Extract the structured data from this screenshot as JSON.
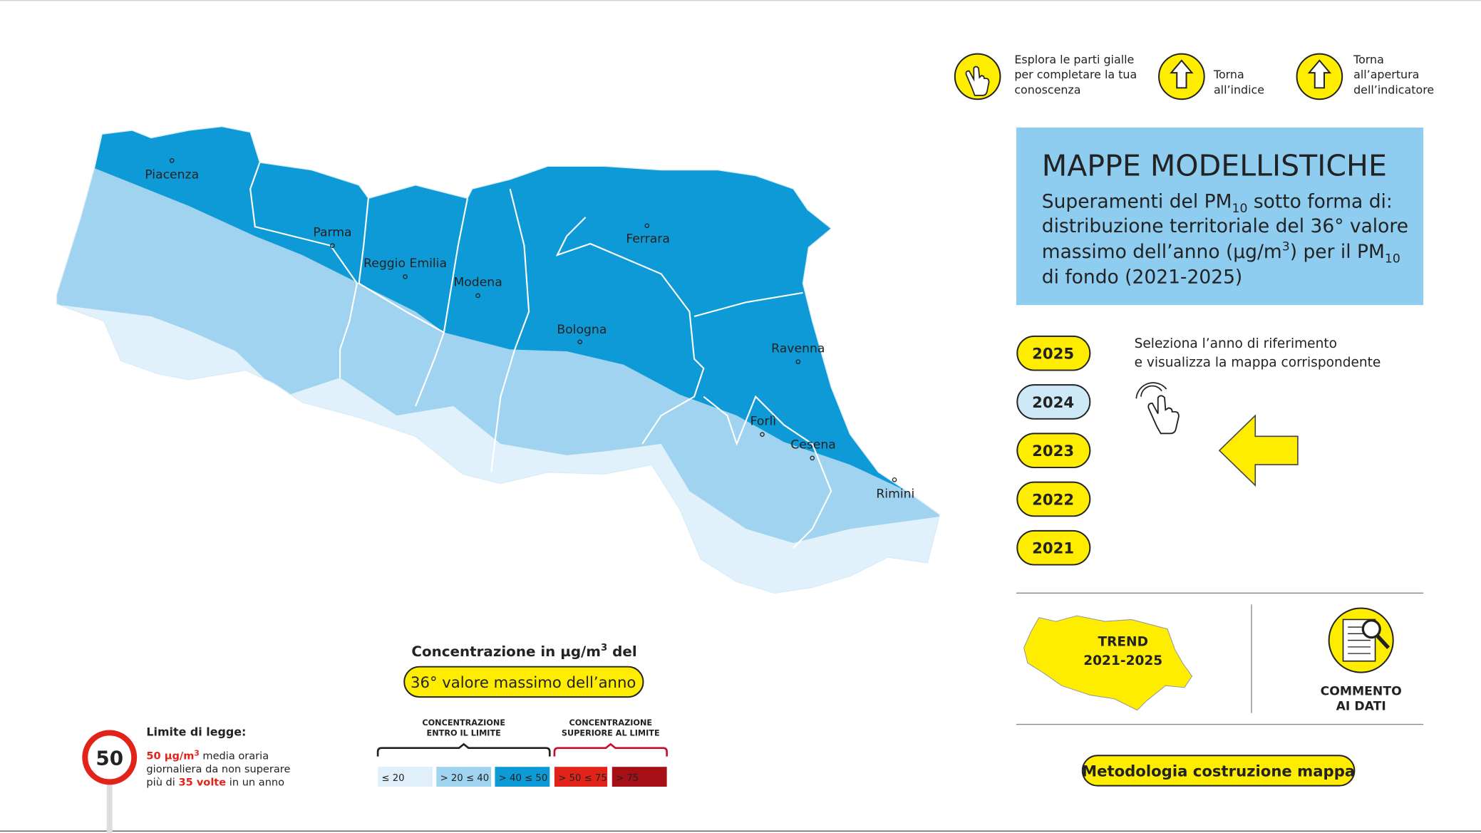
{
  "help": [
    {
      "lines": [
        "Esplora le parti gialle",
        "per completare la tua",
        "conoscenza"
      ]
    },
    {
      "lines": [
        "Torna",
        "all’indice"
      ]
    },
    {
      "lines": [
        "Torna",
        "all’apertura",
        "dell’indicatore"
      ]
    }
  ],
  "panel": {
    "title": "MAPPE MODELLISTICHE",
    "subtitle": [
      [
        "Superamenti del PM",
        "10",
        " sotto forma di:"
      ],
      [
        "distribuzione territoriale del 36° valore"
      ],
      [
        "massimo dell’anno (µg/m",
        "3",
        ") per il PM",
        "10"
      ],
      [
        "di fondo (2021-2025)"
      ]
    ]
  },
  "years": [
    {
      "label": "2025",
      "selected": false
    },
    {
      "label": "2024",
      "selected": true
    },
    {
      "label": "2023",
      "selected": false
    },
    {
      "label": "2022",
      "selected": false
    },
    {
      "label": "2021",
      "selected": false
    }
  ],
  "instruction": [
    "Seleziona l’anno di riferimento",
    "e visualizza la mappa corrispondente"
  ],
  "trend": [
    "TREND",
    "2021-2025"
  ],
  "comment": [
    "COMMENTO",
    "AI DATI"
  ],
  "methodology": "Metodologia costruzione mappa",
  "cities": [
    "Piacenza",
    "Parma",
    "Reggio Emilia",
    "Modena",
    "Ferrara",
    "Bologna",
    "Ravenna",
    "Forlì",
    "Cesena",
    "Rimini"
  ],
  "legend": {
    "title": [
      "Concentrazione in µg/m",
      "3",
      " del"
    ],
    "pill": "36° valore massimo dell’anno",
    "groups": [
      {
        "lines": [
          "CONCENTRAZIONE",
          "ENTRO IL LIMITE"
        ],
        "color": "#222222"
      },
      {
        "lines": [
          "CONCENTRAZIONE",
          "SUPERIORE AL LIMITE"
        ],
        "color": "#c8102e"
      }
    ],
    "bins": [
      {
        "label": "≤ 20",
        "color": "#dff0fa"
      },
      {
        "label": "> 20 ≤ 40",
        "color": "#9fd3f0"
      },
      {
        "label": "> 40 ≤ 50",
        "color": "#0e9ad6"
      },
      {
        "label": "> 50 ≤ 75",
        "color": "#e2231a"
      },
      {
        "label": "> 75",
        "color": "#a50f15"
      }
    ]
  },
  "limit": {
    "sign": "50",
    "title": "Limite di legge:",
    "line1": [
      "50 µg/m",
      "3",
      " media oraria"
    ],
    "line2": "giornaliera da non superare",
    "line3": [
      "più di ",
      "35 volte",
      " in un anno"
    ]
  }
}
